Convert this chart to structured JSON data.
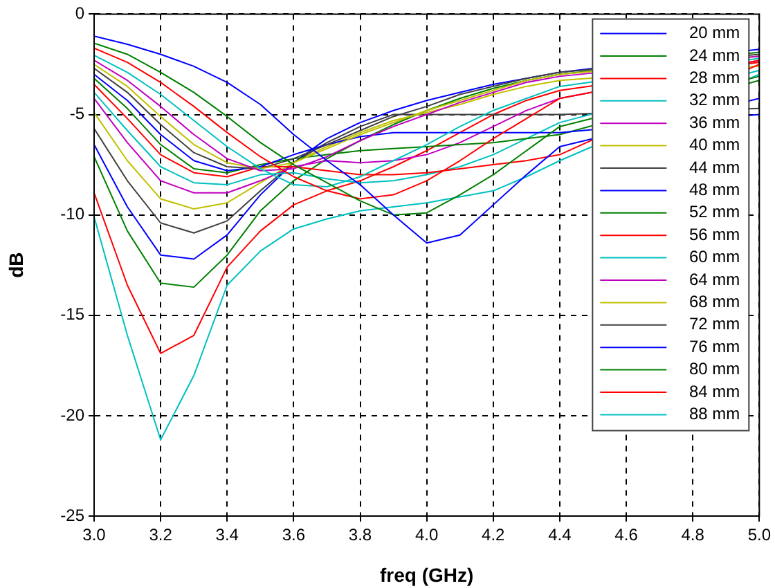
{
  "chart_data": {
    "type": "line",
    "xlabel": "freq (GHz)",
    "ylabel": "dB",
    "x": [
      3.0,
      3.1,
      3.2,
      3.3,
      3.4,
      3.5,
      3.6,
      3.7,
      3.8,
      3.9,
      4.0,
      4.1,
      4.2,
      4.3,
      4.4,
      4.5,
      4.6,
      4.7,
      4.8,
      4.9,
      5.0
    ],
    "xlim": [
      3,
      5
    ],
    "ylim": [
      -25,
      0
    ],
    "xticks": [
      {
        "value": 3,
        "label": "3.0"
      },
      {
        "value": 3.2,
        "label": "3.2"
      },
      {
        "value": 3.4,
        "label": "3.4"
      },
      {
        "value": 3.6,
        "label": "3.6"
      },
      {
        "value": 3.8,
        "label": "3.8"
      },
      {
        "value": 4,
        "label": "4.0"
      },
      {
        "value": 4.2,
        "label": "4.2"
      },
      {
        "value": 4.4,
        "label": "4.4"
      },
      {
        "value": 4.6,
        "label": "4.6"
      },
      {
        "value": 4.8,
        "label": "4.8"
      },
      {
        "value": 5,
        "label": "5.0"
      }
    ],
    "yticks": [
      -25,
      -20,
      -15,
      -10,
      -5,
      0
    ],
    "grid": true,
    "legend": "top right",
    "marker": "none",
    "line_style": "solid",
    "series": [
      {
        "name": "20 mm",
        "color": "#0000ff",
        "values": [
          -1.1,
          -1.5,
          -2.0,
          -2.6,
          -3.4,
          -4.5,
          -6.0,
          -7.3,
          -8.5,
          -10.0,
          -11.4,
          -11.0,
          -9.5,
          -8.0,
          -6.6,
          null,
          null,
          null,
          null,
          null,
          -4.2
        ]
      },
      {
        "name": "24 mm",
        "color": "#008000",
        "values": [
          -1.45,
          -2.0,
          -2.9,
          -3.9,
          -5.1,
          -6.4,
          -7.5,
          -8.4,
          -9.3,
          -10.0,
          -9.9,
          -9.0,
          -8.0,
          -6.8,
          -5.6,
          null,
          null,
          null,
          null,
          null,
          -3.1
        ]
      },
      {
        "name": "28 mm",
        "color": "#ff0000",
        "values": [
          -1.7,
          -2.4,
          -3.4,
          -4.6,
          -5.9,
          -7.1,
          -8.1,
          -8.8,
          -9.2,
          -9.0,
          -8.3,
          -7.3,
          -6.2,
          -5.2,
          -4.2,
          null,
          null,
          null,
          null,
          null,
          -2.3
        ]
      },
      {
        "name": "32 mm",
        "color": "#00c0c0",
        "values": [
          -2.05,
          -2.9,
          -4.0,
          -5.3,
          -6.6,
          -7.7,
          -8.5,
          -8.6,
          -8.1,
          -7.3,
          -6.5,
          -5.6,
          -4.8,
          -4.2,
          -3.6,
          null,
          null,
          null,
          null,
          null,
          -2.2
        ]
      },
      {
        "name": "36 mm",
        "color": "#c000c0",
        "values": [
          -2.3,
          -3.3,
          -4.6,
          -6.0,
          -7.2,
          -7.8,
          -7.7,
          -7.1,
          -6.3,
          -5.6,
          -5.0,
          -4.4,
          -3.9,
          -3.4,
          -3.1,
          null,
          null,
          null,
          null,
          null,
          -2.1
        ]
      },
      {
        "name": "40 mm",
        "color": "#c0c000",
        "values": [
          -2.5,
          -3.6,
          -5.1,
          -6.5,
          -7.4,
          -7.7,
          -7.4,
          -6.7,
          -6.0,
          -5.4,
          -4.8,
          -4.3,
          -3.8,
          -3.3,
          -3.0,
          null,
          null,
          null,
          null,
          null,
          -2.1
        ]
      },
      {
        "name": "44 mm",
        "color": "#404040",
        "values": [
          -2.7,
          -3.9,
          -5.5,
          -6.9,
          -7.6,
          -7.7,
          -7.2,
          -6.5,
          -5.8,
          -5.1,
          -4.6,
          -4.0,
          -3.6,
          -3.2,
          -2.9,
          null,
          null,
          null,
          null,
          null,
          -2.0
        ]
      },
      {
        "name": "48 mm",
        "color": "#0000ff",
        "values": [
          -3.0,
          -4.3,
          -6.0,
          -7.3,
          -7.8,
          -7.6,
          -7.0,
          -6.5,
          -6.1,
          -5.9,
          -5.9,
          -5.9,
          -5.9,
          -5.9,
          -5.9,
          null,
          null,
          null,
          null,
          null,
          -5.0
        ]
      },
      {
        "name": "52 mm",
        "color": "#008000",
        "values": [
          -3.2,
          -4.7,
          -6.5,
          -7.7,
          -7.9,
          -7.5,
          -7.2,
          -7.0,
          -6.8,
          -6.7,
          -6.6,
          -6.5,
          -6.4,
          -6.2,
          -6.0,
          null,
          null,
          null,
          null,
          null,
          -3.3
        ]
      },
      {
        "name": "56 mm",
        "color": "#ff0000",
        "values": [
          -3.5,
          -5.2,
          -7.0,
          -7.9,
          -8.1,
          -7.6,
          -7.6,
          -7.8,
          -8.0,
          -8.0,
          -7.9,
          -7.7,
          -7.5,
          -7.3,
          -7.0,
          null,
          null,
          null,
          null,
          null,
          -2.5
        ]
      },
      {
        "name": "60 mm",
        "color": "#00c0c0",
        "values": [
          -3.9,
          -5.8,
          -7.6,
          -8.4,
          -8.5,
          -8.0,
          -7.9,
          -8.2,
          -8.4,
          -8.3,
          -8.0,
          -7.6,
          -7.0,
          -6.2,
          -5.4,
          null,
          null,
          null,
          null,
          null,
          -2.8
        ]
      },
      {
        "name": "64 mm",
        "color": "#c000c0",
        "values": [
          -4.2,
          -6.4,
          -8.3,
          -8.9,
          -8.9,
          -8.3,
          -7.6,
          -7.3,
          -7.4,
          -7.3,
          -7.0,
          -6.4,
          -5.6,
          -4.8,
          -4.2,
          null,
          null,
          null,
          null,
          null,
          -2.3
        ]
      },
      {
        "name": "68 mm",
        "color": "#c0c000",
        "values": [
          -4.9,
          -7.3,
          -9.2,
          -9.7,
          -9.4,
          -8.4,
          -7.4,
          -6.6,
          -5.9,
          -5.3,
          -4.9,
          -4.5,
          -4.0,
          -3.6,
          -3.3,
          null,
          null,
          null,
          null,
          null,
          -2.6
        ]
      },
      {
        "name": "72 mm",
        "color": "#404040",
        "values": [
          -5.7,
          -8.3,
          -10.4,
          -10.9,
          -10.3,
          -8.8,
          -7.4,
          -6.4,
          -5.6,
          -5.0,
          -5.0,
          -5.0,
          -5.0,
          -5.0,
          -5.0,
          null,
          null,
          null,
          null,
          null,
          -4.7
        ]
      },
      {
        "name": "76 mm",
        "color": "#0000ff",
        "values": [
          -6.5,
          -9.6,
          -12.0,
          -12.2,
          -11.0,
          -9.0,
          -7.4,
          -6.2,
          -5.4,
          -4.8,
          -4.3,
          -3.9,
          -3.5,
          -3.2,
          -2.9,
          null,
          null,
          null,
          null,
          null,
          -1.75
        ]
      },
      {
        "name": "80 mm",
        "color": "#008000",
        "values": [
          -7.1,
          -10.8,
          -13.4,
          -13.6,
          -12.0,
          -9.8,
          -8.3,
          -7.2,
          -6.3,
          -5.5,
          -4.8,
          -4.2,
          -3.7,
          -3.3,
          -3.0,
          null,
          null,
          null,
          null,
          null,
          -1.9
        ]
      },
      {
        "name": "84 mm",
        "color": "#ff0000",
        "values": [
          -8.9,
          -13.5,
          -16.9,
          -16.0,
          -12.6,
          -10.8,
          -9.5,
          -8.8,
          -8.3,
          -7.6,
          -6.8,
          -5.9,
          -5.0,
          -4.3,
          -3.8,
          null,
          null,
          null,
          null,
          null,
          -2.4
        ]
      },
      {
        "name": "88 mm",
        "color": "#00c0c0",
        "values": [
          -10.1,
          -16.0,
          -21.2,
          -18.0,
          -13.5,
          -11.8,
          -10.7,
          -10.2,
          -9.8,
          -9.6,
          -9.4,
          -9.1,
          -8.8,
          -8.1,
          -7.3,
          null,
          null,
          null,
          null,
          null,
          -3.0
        ]
      }
    ]
  }
}
